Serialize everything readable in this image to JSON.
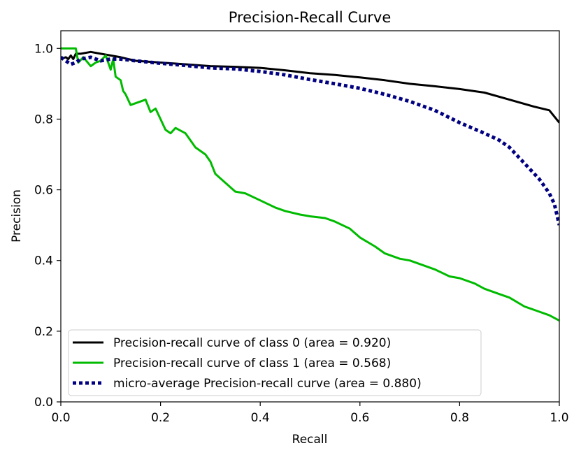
{
  "chart_data": {
    "type": "line",
    "title": "Precision-Recall Curve",
    "xlabel": "Recall",
    "ylabel": "Precision",
    "xlim": [
      0.0,
      1.0
    ],
    "ylim": [
      0.0,
      1.05
    ],
    "xticks": [
      0.0,
      0.2,
      0.4,
      0.6,
      0.8,
      1.0
    ],
    "yticks": [
      0.0,
      0.2,
      0.4,
      0.6,
      0.8,
      1.0
    ],
    "xtick_labels": [
      "0.0",
      "0.2",
      "0.4",
      "0.6",
      "0.8",
      "1.0"
    ],
    "ytick_labels": [
      "0.0",
      "0.2",
      "0.4",
      "0.6",
      "0.8",
      "1.0"
    ],
    "grid": false,
    "legend_position": "lower-left",
    "series": [
      {
        "name": "Precision-recall curve of class 0 (area = 0.920)",
        "color": "#000000",
        "style": "solid",
        "x": [
          0.0,
          0.01,
          0.015,
          0.02,
          0.025,
          0.03,
          0.04,
          0.06,
          0.08,
          0.1,
          0.12,
          0.15,
          0.2,
          0.25,
          0.3,
          0.35,
          0.4,
          0.45,
          0.5,
          0.55,
          0.6,
          0.65,
          0.7,
          0.75,
          0.8,
          0.85,
          0.9,
          0.95,
          0.98,
          1.0
        ],
        "y": [
          0.97,
          0.975,
          0.97,
          0.98,
          0.97,
          0.985,
          0.985,
          0.99,
          0.985,
          0.98,
          0.975,
          0.965,
          0.96,
          0.955,
          0.95,
          0.948,
          0.945,
          0.938,
          0.93,
          0.925,
          0.918,
          0.91,
          0.9,
          0.893,
          0.885,
          0.875,
          0.855,
          0.835,
          0.825,
          0.79
        ]
      },
      {
        "name": "Precision-recall curve of class 1 (area = 0.568)",
        "color": "#00bb00",
        "style": "solid",
        "x": [
          0.0,
          0.03,
          0.035,
          0.045,
          0.06,
          0.07,
          0.08,
          0.09,
          0.1,
          0.105,
          0.11,
          0.12,
          0.125,
          0.13,
          0.14,
          0.15,
          0.17,
          0.18,
          0.19,
          0.2,
          0.21,
          0.22,
          0.23,
          0.25,
          0.27,
          0.29,
          0.3,
          0.31,
          0.33,
          0.35,
          0.37,
          0.4,
          0.43,
          0.45,
          0.48,
          0.5,
          0.53,
          0.55,
          0.58,
          0.6,
          0.63,
          0.65,
          0.68,
          0.7,
          0.73,
          0.75,
          0.78,
          0.8,
          0.83,
          0.85,
          0.88,
          0.9,
          0.93,
          0.95,
          0.98,
          1.0
        ],
        "y": [
          1.0,
          1.0,
          0.96,
          0.975,
          0.95,
          0.96,
          0.965,
          0.98,
          0.94,
          0.97,
          0.92,
          0.91,
          0.88,
          0.87,
          0.84,
          0.845,
          0.855,
          0.82,
          0.83,
          0.8,
          0.77,
          0.76,
          0.775,
          0.76,
          0.72,
          0.7,
          0.68,
          0.645,
          0.62,
          0.595,
          0.59,
          0.57,
          0.55,
          0.54,
          0.53,
          0.525,
          0.52,
          0.51,
          0.49,
          0.465,
          0.44,
          0.42,
          0.405,
          0.4,
          0.385,
          0.375,
          0.355,
          0.35,
          0.335,
          0.32,
          0.305,
          0.295,
          0.27,
          0.26,
          0.245,
          0.23
        ]
      },
      {
        "name": "micro-average Precision-recall curve (area = 0.880)",
        "color": "#000080",
        "style": "dotted",
        "x": [
          0.0,
          0.01,
          0.02,
          0.03,
          0.04,
          0.06,
          0.08,
          0.1,
          0.12,
          0.15,
          0.2,
          0.25,
          0.3,
          0.35,
          0.4,
          0.45,
          0.5,
          0.55,
          0.6,
          0.65,
          0.7,
          0.75,
          0.8,
          0.85,
          0.88,
          0.9,
          0.92,
          0.94,
          0.96,
          0.98,
          0.99,
          1.0
        ],
        "y": [
          0.975,
          0.965,
          0.955,
          0.96,
          0.97,
          0.975,
          0.965,
          0.97,
          0.97,
          0.965,
          0.958,
          0.952,
          0.945,
          0.942,
          0.935,
          0.925,
          0.912,
          0.9,
          0.887,
          0.87,
          0.85,
          0.825,
          0.79,
          0.76,
          0.74,
          0.72,
          0.69,
          0.66,
          0.63,
          0.59,
          0.56,
          0.5
        ]
      }
    ]
  }
}
